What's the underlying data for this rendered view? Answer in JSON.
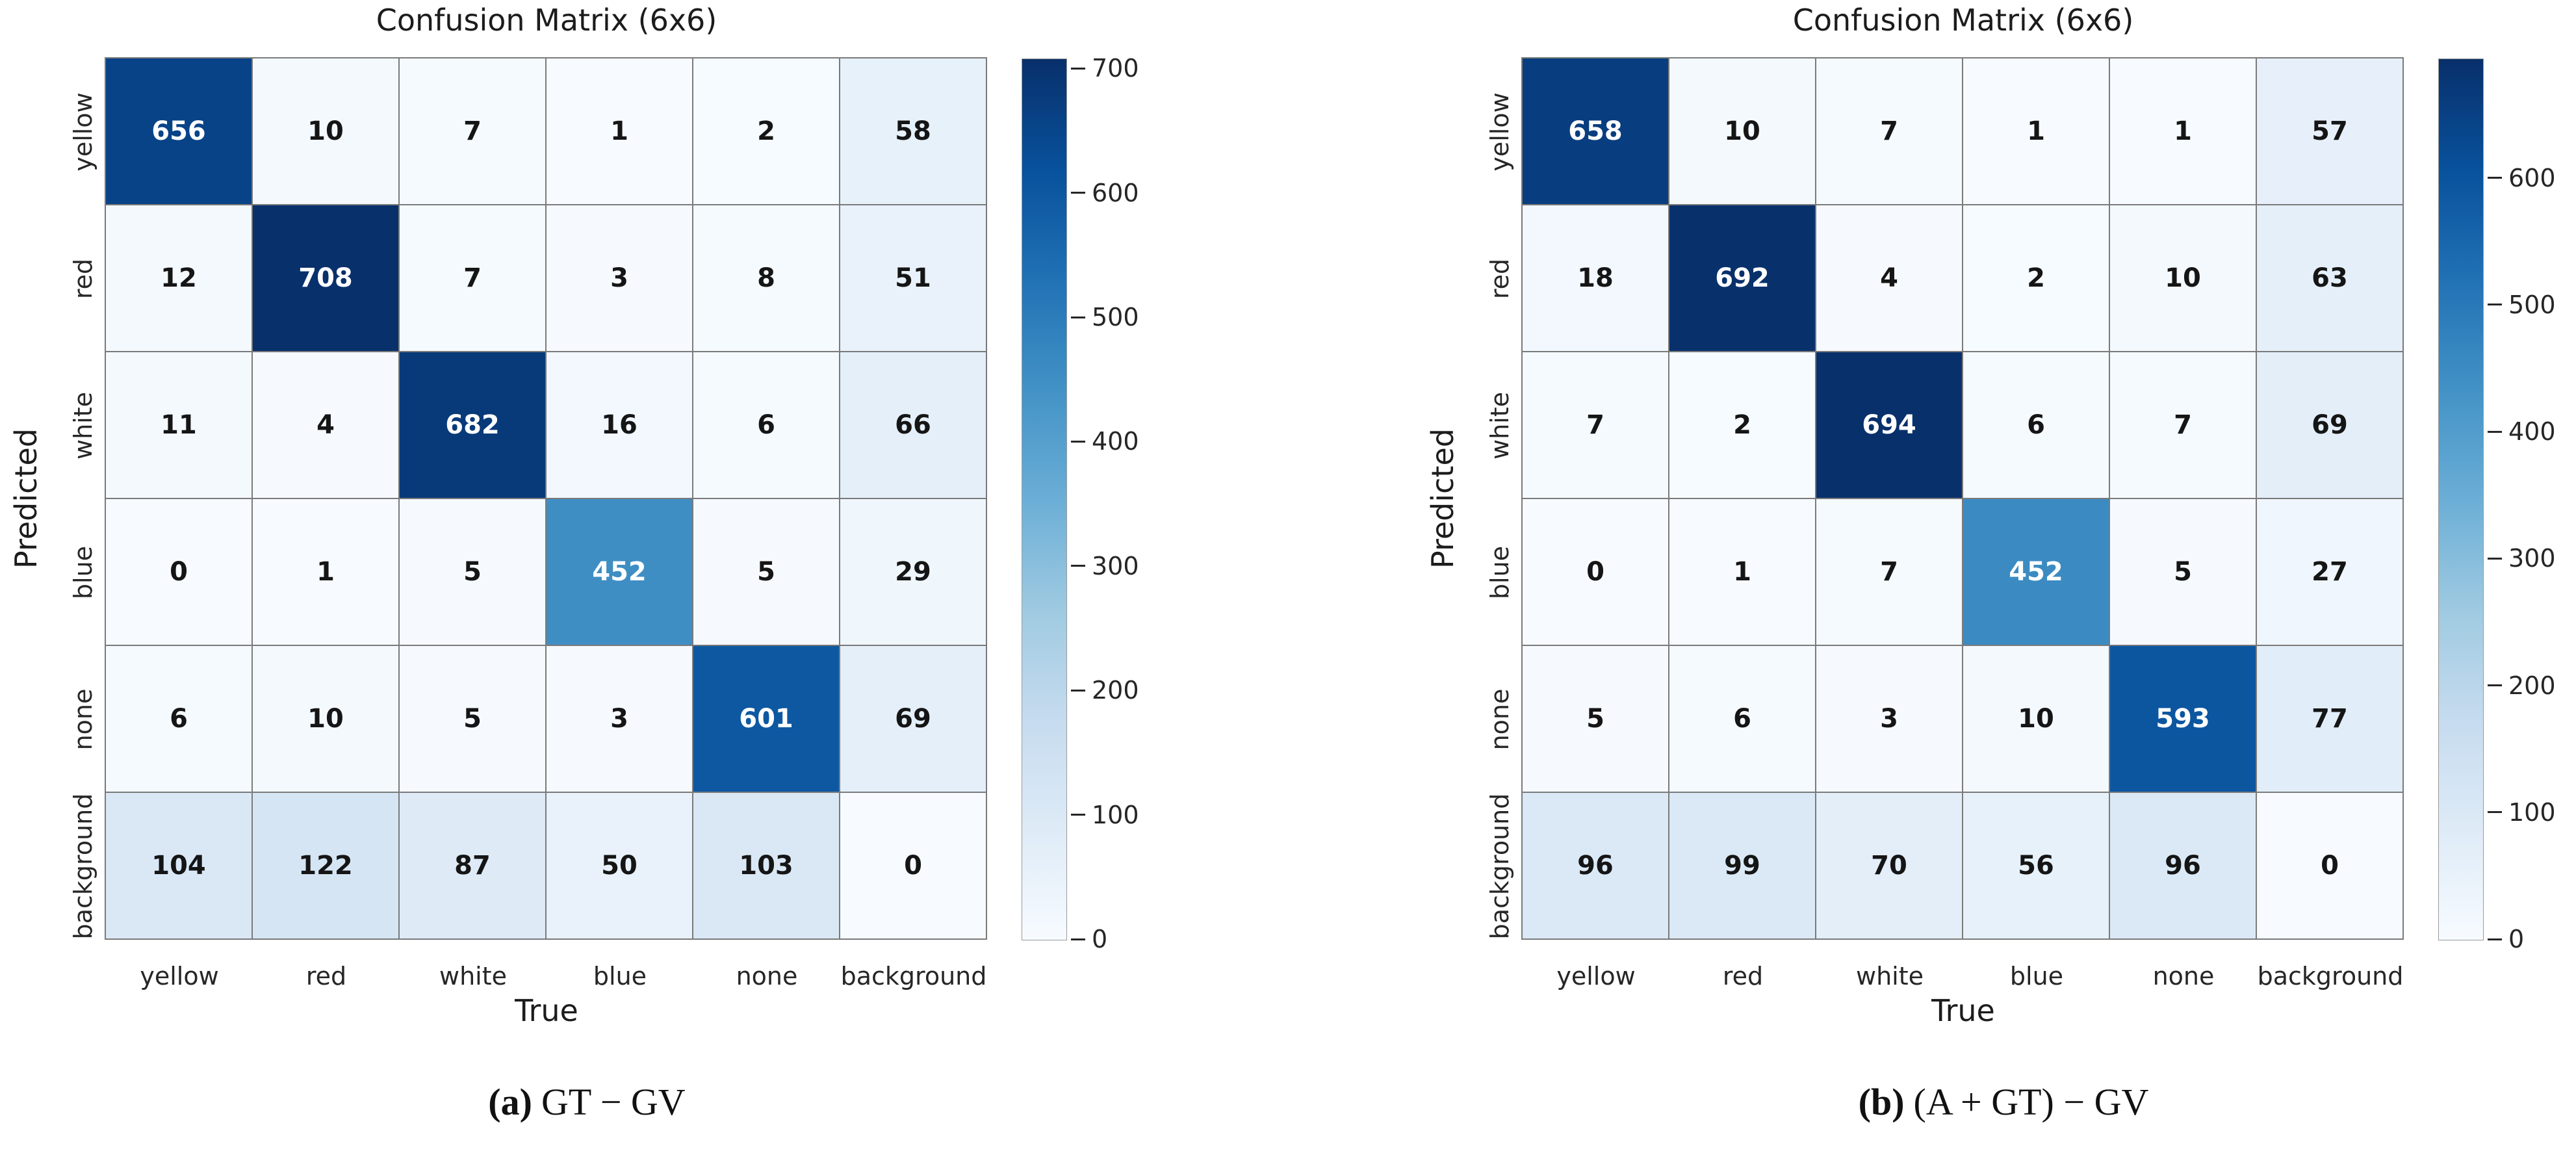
{
  "chart_data": [
    {
      "type": "heatmap",
      "panel": "a",
      "title": "Confusion Matrix (6x6)",
      "xlabel": "True",
      "ylabel": "Predicted",
      "x_categories": [
        "yellow",
        "red",
        "white",
        "blue",
        "none",
        "background"
      ],
      "y_categories": [
        "yellow",
        "red",
        "white",
        "blue",
        "none",
        "background"
      ],
      "matrix": [
        [
          656,
          10,
          7,
          1,
          2,
          58
        ],
        [
          12,
          708,
          7,
          3,
          8,
          51
        ],
        [
          11,
          4,
          682,
          16,
          6,
          66
        ],
        [
          0,
          1,
          5,
          452,
          5,
          29
        ],
        [
          6,
          10,
          5,
          3,
          601,
          69
        ],
        [
          104,
          122,
          87,
          50,
          103,
          0
        ]
      ],
      "vmin": 0,
      "vmax": 708,
      "colorbar_ticks": [
        0,
        100,
        200,
        300,
        400,
        500,
        600,
        700
      ],
      "legend_position": "right",
      "grid": true,
      "caption_label": "(a)",
      "caption_text": "GT − GV"
    },
    {
      "type": "heatmap",
      "panel": "b",
      "title": "Confusion Matrix (6x6)",
      "xlabel": "True",
      "ylabel": "Predicted",
      "x_categories": [
        "yellow",
        "red",
        "white",
        "blue",
        "none",
        "background"
      ],
      "y_categories": [
        "yellow",
        "red",
        "white",
        "blue",
        "none",
        "background"
      ],
      "matrix": [
        [
          658,
          10,
          7,
          1,
          1,
          57
        ],
        [
          18,
          692,
          4,
          2,
          10,
          63
        ],
        [
          7,
          2,
          694,
          6,
          7,
          69
        ],
        [
          0,
          1,
          7,
          452,
          5,
          27
        ],
        [
          5,
          6,
          3,
          10,
          593,
          77
        ],
        [
          96,
          99,
          70,
          56,
          96,
          0
        ]
      ],
      "vmin": 0,
      "vmax": 694,
      "colorbar_ticks": [
        0,
        100,
        200,
        300,
        400,
        500,
        600
      ],
      "legend_position": "right",
      "grid": true,
      "caption_label": "(b)",
      "caption_text": "(A + GT) − GV"
    }
  ],
  "style": {
    "colormap": "Blues",
    "colormap_stops": [
      "#f7fbff",
      "#deebf7",
      "#c6dbef",
      "#9ecae1",
      "#6baed6",
      "#4292c6",
      "#2171b5",
      "#08519c",
      "#08306b"
    ],
    "grid_line_color": "#7a7a7a",
    "annotation_color_dark": "#151515",
    "annotation_color_light": "#ffffff",
    "tick_color": "#262626"
  }
}
